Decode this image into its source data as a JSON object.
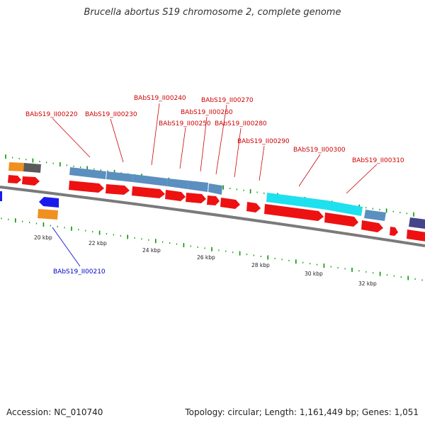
{
  "title": "Brucella abortus S19 chromosome 2, complete genome",
  "footer": {
    "accession": "Accession: NC_010740",
    "stats": "Topology: circular; Length: 1,161,449 bp; Genes: 1,051"
  },
  "colors": {
    "backbone": "#808080",
    "cds": "#ee1111",
    "label_red": "#cc0000",
    "label_blue": "#0000cc",
    "tick_green": "#009900",
    "steelblue": "#5b8fbf",
    "cyan": "#1fe0ee",
    "orange": "#f09020",
    "grey": "#555555",
    "purple": "#44448a",
    "blue": "#1a1aee"
  },
  "scale_labels": [
    "20 kbp",
    "22 kbp",
    "24 kbp",
    "26 kbp",
    "28 kbp",
    "30 kbp",
    "32 kbp"
  ],
  "gene_labels": [
    {
      "id": "BAbS19_II00220",
      "color": "red"
    },
    {
      "id": "BAbS19_II00230",
      "color": "red"
    },
    {
      "id": "BAbS19_II00240",
      "color": "red"
    },
    {
      "id": "BAbS19_II00250",
      "color": "red"
    },
    {
      "id": "BAbS19_II00260",
      "color": "red"
    },
    {
      "id": "BAbS19_II00270",
      "color": "red"
    },
    {
      "id": "BAbS19_II00280",
      "color": "red"
    },
    {
      "id": "BAbS19_II00290",
      "color": "red"
    },
    {
      "id": "BAbS19_II00300",
      "color": "red"
    },
    {
      "id": "BAbS19_II00310",
      "color": "red"
    },
    {
      "id": "BAbS19_II00210",
      "color": "blue"
    }
  ]
}
